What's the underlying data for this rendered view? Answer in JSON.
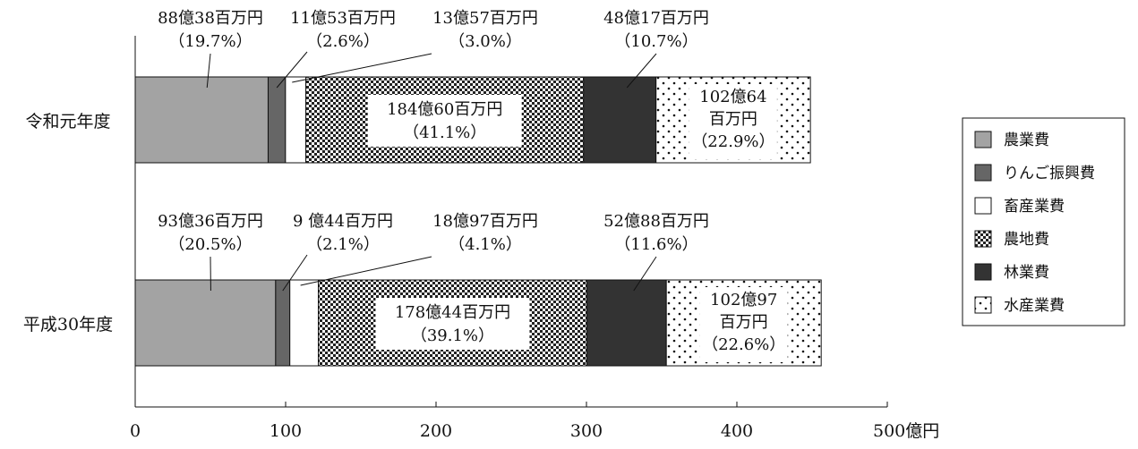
{
  "chart_data": {
    "type": "bar",
    "orientation": "horizontal",
    "stacked": true,
    "title": "",
    "xlabel": "",
    "ylabel": "",
    "x_unit": "億円",
    "xlim": [
      0,
      500
    ],
    "x_ticks": [
      0,
      100,
      200,
      300,
      400,
      500
    ],
    "x_tick_labels": [
      "0",
      "100",
      "200",
      "300",
      "400",
      "500億円"
    ],
    "grid": false,
    "legend_position": "right",
    "categories": [
      "令和元年度",
      "平成30年度"
    ],
    "series": [
      {
        "name": "農業費",
        "pattern": "solid",
        "color": "#a3a3a3",
        "values": [
          88.38,
          93.36
        ],
        "labels": [
          [
            "88億38百万円",
            "（19.7%）"
          ],
          [
            "93億36百万円",
            "（20.5%）"
          ]
        ]
      },
      {
        "name": "りんご振興費",
        "pattern": "solid",
        "color": "#666666",
        "values": [
          11.53,
          9.44
        ],
        "labels": [
          [
            "11億53百万円",
            "（2.6%）"
          ],
          [
            "9 億44百万円",
            "（2.1%）"
          ]
        ]
      },
      {
        "name": "畜産業費",
        "pattern": "solid",
        "color": "#ffffff",
        "values": [
          13.57,
          18.97
        ],
        "labels": [
          [
            "13億57百万円",
            "（3.0%）"
          ],
          [
            "18億97百万円",
            "（4.1%）"
          ]
        ]
      },
      {
        "name": "農地費",
        "pattern": "checker",
        "color": "#222222",
        "values": [
          184.6,
          178.44
        ],
        "labels": [
          [
            "184億60百万円",
            "（41.1%）"
          ],
          [
            "178億44百万円",
            "（39.1%）"
          ]
        ]
      },
      {
        "name": "林業費",
        "pattern": "solid",
        "color": "#333333",
        "values": [
          48.17,
          52.88
        ],
        "labels": [
          [
            "48億17百万円",
            "（10.7%）"
          ],
          [
            "52億88百万円",
            "（11.6%）"
          ]
        ]
      },
      {
        "name": "水産業費",
        "pattern": "dots",
        "color": "#111111",
        "values": [
          102.64,
          102.97
        ],
        "labels": [
          [
            "102億64",
            "百万円",
            "（22.9%）"
          ],
          [
            "102億97",
            "百万円",
            "（22.6%）"
          ]
        ]
      }
    ]
  }
}
